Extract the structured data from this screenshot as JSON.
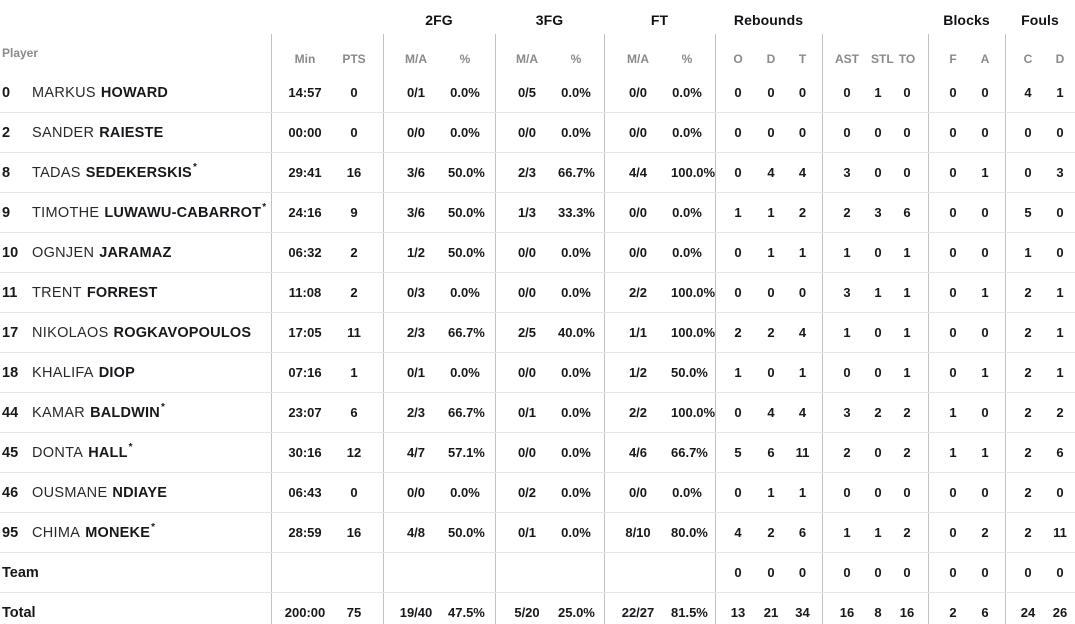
{
  "colors": {
    "group_text": "#121216",
    "header_text": "#8a8a8a",
    "data_text": "#18181c",
    "name_light": "#29292d",
    "vline": "#c2c2c2",
    "hline": "#e6e6e6"
  },
  "header": {
    "player_label": "Player",
    "groups": {
      "fg2": "2FG",
      "fg3": "3FG",
      "ft": "FT",
      "rebounds": "Rebounds",
      "blocks": "Blocks",
      "fouls": "Fouls"
    },
    "cols": {
      "min": "Min",
      "pts": "PTS",
      "ma": "M/A",
      "pct": "%",
      "o": "O",
      "d": "D",
      "t": "T",
      "ast": "AST",
      "stl": "STL",
      "to": "TO",
      "f": "F",
      "a": "A",
      "c": "C",
      "dd": "D"
    }
  },
  "rows": [
    {
      "num": "0",
      "first": "MARKUS",
      "last": "HOWARD",
      "star": "",
      "label": "",
      "min": "14:57",
      "pts": "0",
      "fg2_ma": "0/1",
      "fg2_pct": "0.0%",
      "fg3_ma": "0/5",
      "fg3_pct": "0.0%",
      "ft_ma": "0/0",
      "ft_pct": "0.0%",
      "reb_o": "0",
      "reb_d": "0",
      "reb_t": "0",
      "ast": "0",
      "stl": "1",
      "to": "0",
      "blk_f": "0",
      "blk_a": "0",
      "foul_c": "4",
      "foul_d": "1"
    },
    {
      "num": "2",
      "first": "SANDER",
      "last": "RAIESTE",
      "star": "",
      "label": "",
      "min": "00:00",
      "pts": "0",
      "fg2_ma": "0/0",
      "fg2_pct": "0.0%",
      "fg3_ma": "0/0",
      "fg3_pct": "0.0%",
      "ft_ma": "0/0",
      "ft_pct": "0.0%",
      "reb_o": "0",
      "reb_d": "0",
      "reb_t": "0",
      "ast": "0",
      "stl": "0",
      "to": "0",
      "blk_f": "0",
      "blk_a": "0",
      "foul_c": "0",
      "foul_d": "0"
    },
    {
      "num": "8",
      "first": "TADAS",
      "last": "SEDEKERSKIS",
      "star": "*",
      "label": "",
      "min": "29:41",
      "pts": "16",
      "fg2_ma": "3/6",
      "fg2_pct": "50.0%",
      "fg3_ma": "2/3",
      "fg3_pct": "66.7%",
      "ft_ma": "4/4",
      "ft_pct": "100.0%",
      "reb_o": "0",
      "reb_d": "4",
      "reb_t": "4",
      "ast": "3",
      "stl": "0",
      "to": "0",
      "blk_f": "0",
      "blk_a": "1",
      "foul_c": "0",
      "foul_d": "3"
    },
    {
      "num": "9",
      "first": "TIMOTHE",
      "last": "LUWAWU-CABARROT",
      "star": "*",
      "label": "",
      "min": "24:16",
      "pts": "9",
      "fg2_ma": "3/6",
      "fg2_pct": "50.0%",
      "fg3_ma": "1/3",
      "fg3_pct": "33.3%",
      "ft_ma": "0/0",
      "ft_pct": "0.0%",
      "reb_o": "1",
      "reb_d": "1",
      "reb_t": "2",
      "ast": "2",
      "stl": "3",
      "to": "6",
      "blk_f": "0",
      "blk_a": "0",
      "foul_c": "5",
      "foul_d": "0"
    },
    {
      "num": "10",
      "first": "OGNJEN",
      "last": "JARAMAZ",
      "star": "",
      "label": "",
      "min": "06:32",
      "pts": "2",
      "fg2_ma": "1/2",
      "fg2_pct": "50.0%",
      "fg3_ma": "0/0",
      "fg3_pct": "0.0%",
      "ft_ma": "0/0",
      "ft_pct": "0.0%",
      "reb_o": "0",
      "reb_d": "1",
      "reb_t": "1",
      "ast": "1",
      "stl": "0",
      "to": "1",
      "blk_f": "0",
      "blk_a": "0",
      "foul_c": "1",
      "foul_d": "0"
    },
    {
      "num": "11",
      "first": "TRENT",
      "last": "FORREST",
      "star": "",
      "label": "",
      "min": "11:08",
      "pts": "2",
      "fg2_ma": "0/3",
      "fg2_pct": "0.0%",
      "fg3_ma": "0/0",
      "fg3_pct": "0.0%",
      "ft_ma": "2/2",
      "ft_pct": "100.0%",
      "reb_o": "0",
      "reb_d": "0",
      "reb_t": "0",
      "ast": "3",
      "stl": "1",
      "to": "1",
      "blk_f": "0",
      "blk_a": "1",
      "foul_c": "2",
      "foul_d": "1"
    },
    {
      "num": "17",
      "first": "NIKOLAOS",
      "last": "ROGKAVOPOULOS",
      "star": "",
      "label": "",
      "min": "17:05",
      "pts": "11",
      "fg2_ma": "2/3",
      "fg2_pct": "66.7%",
      "fg3_ma": "2/5",
      "fg3_pct": "40.0%",
      "ft_ma": "1/1",
      "ft_pct": "100.0%",
      "reb_o": "2",
      "reb_d": "2",
      "reb_t": "4",
      "ast": "1",
      "stl": "0",
      "to": "1",
      "blk_f": "0",
      "blk_a": "0",
      "foul_c": "2",
      "foul_d": "1"
    },
    {
      "num": "18",
      "first": "KHALIFA",
      "last": "DIOP",
      "star": "",
      "label": "",
      "min": "07:16",
      "pts": "1",
      "fg2_ma": "0/1",
      "fg2_pct": "0.0%",
      "fg3_ma": "0/0",
      "fg3_pct": "0.0%",
      "ft_ma": "1/2",
      "ft_pct": "50.0%",
      "reb_o": "1",
      "reb_d": "0",
      "reb_t": "1",
      "ast": "0",
      "stl": "0",
      "to": "1",
      "blk_f": "0",
      "blk_a": "1",
      "foul_c": "2",
      "foul_d": "1"
    },
    {
      "num": "44",
      "first": "KAMAR",
      "last": "BALDWIN",
      "star": "*",
      "label": "",
      "min": "23:07",
      "pts": "6",
      "fg2_ma": "2/3",
      "fg2_pct": "66.7%",
      "fg3_ma": "0/1",
      "fg3_pct": "0.0%",
      "ft_ma": "2/2",
      "ft_pct": "100.0%",
      "reb_o": "0",
      "reb_d": "4",
      "reb_t": "4",
      "ast": "3",
      "stl": "2",
      "to": "2",
      "blk_f": "1",
      "blk_a": "0",
      "foul_c": "2",
      "foul_d": "2"
    },
    {
      "num": "45",
      "first": "DONTA",
      "last": "HALL",
      "star": "*",
      "label": "",
      "min": "30:16",
      "pts": "12",
      "fg2_ma": "4/7",
      "fg2_pct": "57.1%",
      "fg3_ma": "0/0",
      "fg3_pct": "0.0%",
      "ft_ma": "4/6",
      "ft_pct": "66.7%",
      "reb_o": "5",
      "reb_d": "6",
      "reb_t": "11",
      "ast": "2",
      "stl": "0",
      "to": "2",
      "blk_f": "1",
      "blk_a": "1",
      "foul_c": "2",
      "foul_d": "6"
    },
    {
      "num": "46",
      "first": "OUSMANE",
      "last": "NDIAYE",
      "star": "",
      "label": "",
      "min": "06:43",
      "pts": "0",
      "fg2_ma": "0/0",
      "fg2_pct": "0.0%",
      "fg3_ma": "0/2",
      "fg3_pct": "0.0%",
      "ft_ma": "0/0",
      "ft_pct": "0.0%",
      "reb_o": "0",
      "reb_d": "1",
      "reb_t": "1",
      "ast": "0",
      "stl": "0",
      "to": "0",
      "blk_f": "0",
      "blk_a": "0",
      "foul_c": "2",
      "foul_d": "0"
    },
    {
      "num": "95",
      "first": "CHIMA",
      "last": "MONEKE",
      "star": "*",
      "label": "",
      "min": "28:59",
      "pts": "16",
      "fg2_ma": "4/8",
      "fg2_pct": "50.0%",
      "fg3_ma": "0/1",
      "fg3_pct": "0.0%",
      "ft_ma": "8/10",
      "ft_pct": "80.0%",
      "reb_o": "4",
      "reb_d": "2",
      "reb_t": "6",
      "ast": "1",
      "stl": "1",
      "to": "2",
      "blk_f": "0",
      "blk_a": "2",
      "foul_c": "2",
      "foul_d": "11"
    },
    {
      "num": "",
      "first": "",
      "last": "",
      "star": "",
      "label": "Team",
      "min": "",
      "pts": "",
      "fg2_ma": "",
      "fg2_pct": "",
      "fg3_ma": "",
      "fg3_pct": "",
      "ft_ma": "",
      "ft_pct": "",
      "reb_o": "0",
      "reb_d": "0",
      "reb_t": "0",
      "ast": "0",
      "stl": "0",
      "to": "0",
      "blk_f": "0",
      "blk_a": "0",
      "foul_c": "0",
      "foul_d": "0"
    },
    {
      "num": "",
      "first": "",
      "last": "",
      "star": "",
      "label": "Total",
      "min": "200:00",
      "pts": "75",
      "fg2_ma": "19/40",
      "fg2_pct": "47.5%",
      "fg3_ma": "5/20",
      "fg3_pct": "25.0%",
      "ft_ma": "22/27",
      "ft_pct": "81.5%",
      "reb_o": "13",
      "reb_d": "21",
      "reb_t": "34",
      "ast": "16",
      "stl": "8",
      "to": "16",
      "blk_f": "2",
      "blk_a": "6",
      "foul_c": "24",
      "foul_d": "26"
    }
  ]
}
